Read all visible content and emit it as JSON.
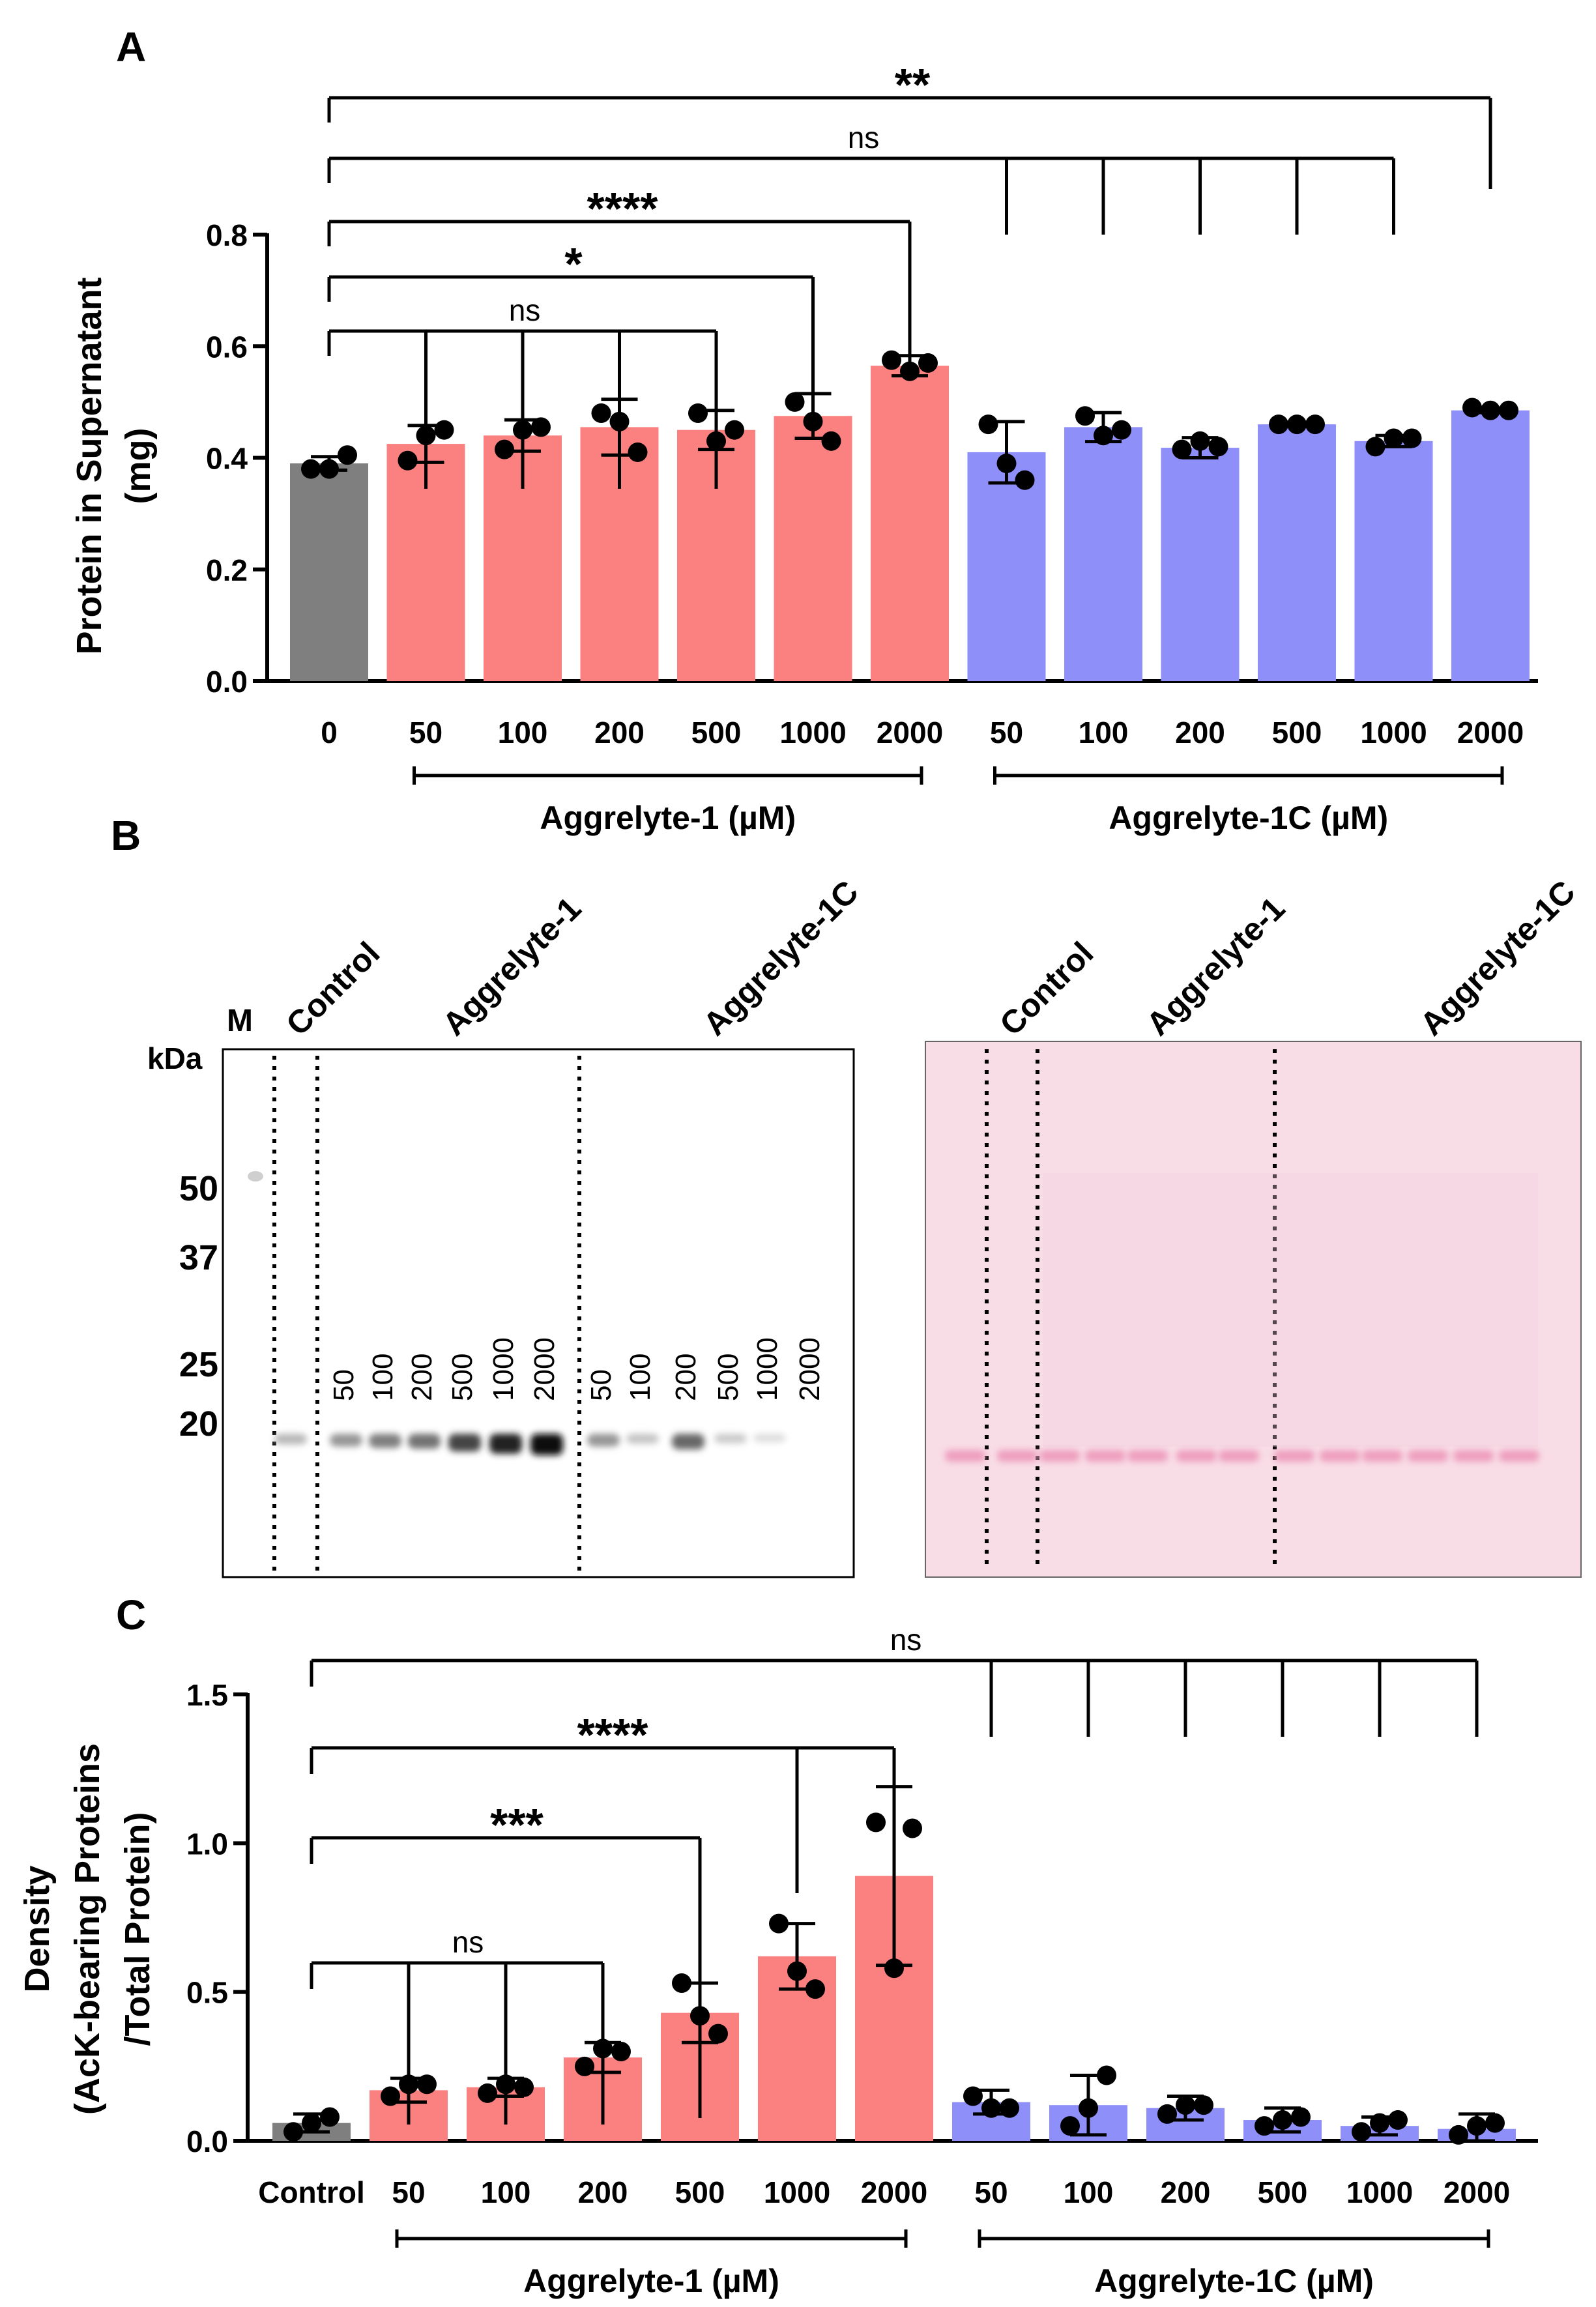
{
  "panels": {
    "a": "A",
    "b": "B",
    "c": "C"
  },
  "colors": {
    "control": "#7f7f7f",
    "aggrelyte1": "#fb8080",
    "aggrelyte1c": "#8f8ff9",
    "ink": "#000000",
    "ponceau_bg": "#f8dde6",
    "ponceau_band": "#ee9fbd"
  },
  "chart_data": [
    {
      "id": "A",
      "type": "bar",
      "title": "",
      "ylabel_line1": "Protein in Supernatant",
      "ylabel_line2": "(mg)",
      "xlabel": "",
      "ylim": [
        0,
        0.8
      ],
      "yticks": [
        "0.0",
        "0.2",
        "0.4",
        "0.6",
        "0.8"
      ],
      "categories": [
        "0",
        "50",
        "100",
        "200",
        "500",
        "1000",
        "2000",
        "50",
        "100",
        "200",
        "500",
        "1000",
        "2000"
      ],
      "groups": [
        "control",
        "aggrelyte1",
        "aggrelyte1",
        "aggrelyte1",
        "aggrelyte1",
        "aggrelyte1",
        "aggrelyte1",
        "aggrelyte1c",
        "aggrelyte1c",
        "aggrelyte1c",
        "aggrelyte1c",
        "aggrelyte1c",
        "aggrelyte1c"
      ],
      "values": [
        0.39,
        0.425,
        0.44,
        0.455,
        0.45,
        0.475,
        0.565,
        0.41,
        0.455,
        0.418,
        0.46,
        0.43,
        0.485
      ],
      "errors": [
        0.012,
        0.033,
        0.028,
        0.05,
        0.035,
        0.04,
        0.018,
        0.055,
        0.026,
        0.018,
        0.003,
        0.01,
        0.004
      ],
      "points": [
        [
          0.38,
          0.38,
          0.405
        ],
        [
          0.395,
          0.44,
          0.45
        ],
        [
          0.415,
          0.45,
          0.455
        ],
        [
          0.48,
          0.465,
          0.41
        ],
        [
          0.48,
          0.43,
          0.45
        ],
        [
          0.5,
          0.465,
          0.43
        ],
        [
          0.575,
          0.555,
          0.57
        ],
        [
          0.46,
          0.39,
          0.36
        ],
        [
          0.475,
          0.44,
          0.45
        ],
        [
          0.415,
          0.43,
          0.42
        ],
        [
          0.46,
          0.46,
          0.46
        ],
        [
          0.42,
          0.435,
          0.435
        ],
        [
          0.49,
          0.485,
          0.485
        ]
      ],
      "group_labels": [
        "Aggrelyte-1 (µM)",
        "Aggrelyte-1C (µM)"
      ],
      "significance": [
        {
          "label": "**",
          "from": 0,
          "to": [
            12
          ]
        },
        {
          "label": "ns",
          "from": 0,
          "to": [
            7,
            8,
            9,
            10,
            11
          ]
        },
        {
          "label": "****",
          "from": 0,
          "to": [
            6
          ]
        },
        {
          "label": "*",
          "from": 0,
          "to": [
            5
          ]
        },
        {
          "label": "ns",
          "from": 0,
          "to": [
            1,
            2,
            3,
            4
          ]
        }
      ]
    },
    {
      "id": "C",
      "type": "bar",
      "title": "",
      "ylabel_line1": "Density",
      "ylabel_line2": "(AcK-bearing Proteins",
      "ylabel_line3": "/Total Protein)",
      "xlabel": "",
      "ylim": [
        0,
        1.5
      ],
      "yticks": [
        "0.0",
        "0.5",
        "1.0",
        "1.5"
      ],
      "categories": [
        "Control",
        "50",
        "100",
        "200",
        "500",
        "1000",
        "2000",
        "50",
        "100",
        "200",
        "500",
        "1000",
        "2000"
      ],
      "groups": [
        "control",
        "aggrelyte1",
        "aggrelyte1",
        "aggrelyte1",
        "aggrelyte1",
        "aggrelyte1",
        "aggrelyte1",
        "aggrelyte1c",
        "aggrelyte1c",
        "aggrelyte1c",
        "aggrelyte1c",
        "aggrelyte1c",
        "aggrelyte1c"
      ],
      "values": [
        0.06,
        0.17,
        0.18,
        0.28,
        0.43,
        0.62,
        0.89,
        0.13,
        0.12,
        0.11,
        0.07,
        0.05,
        0.04
      ],
      "errors": [
        0.03,
        0.04,
        0.03,
        0.05,
        0.1,
        0.11,
        0.3,
        0.04,
        0.1,
        0.04,
        0.04,
        0.03,
        0.05
      ],
      "points": [
        [
          0.03,
          0.06,
          0.08
        ],
        [
          0.15,
          0.19,
          0.19
        ],
        [
          0.16,
          0.19,
          0.18
        ],
        [
          0.25,
          0.31,
          0.3
        ],
        [
          0.53,
          0.42,
          0.36
        ],
        [
          0.73,
          0.57,
          0.51
        ],
        [
          1.07,
          0.58,
          1.05
        ],
        [
          0.15,
          0.11,
          0.11
        ],
        [
          0.05,
          0.11,
          0.22
        ],
        [
          0.09,
          0.12,
          0.12
        ],
        [
          0.05,
          0.07,
          0.08
        ],
        [
          0.03,
          0.06,
          0.07
        ],
        [
          0.02,
          0.05,
          0.06
        ]
      ],
      "group_labels": [
        "Aggrelyte-1 (µM)",
        "Aggrelyte-1C (µM)"
      ],
      "significance": [
        {
          "label": "ns",
          "from": 0,
          "to": [
            7,
            8,
            9,
            10,
            11,
            12
          ]
        },
        {
          "label": "****",
          "from": 0,
          "to": [
            5,
            6
          ]
        },
        {
          "label": "***",
          "from": 0,
          "to": [
            4
          ]
        },
        {
          "label": "ns",
          "from": 0,
          "to": [
            1,
            2,
            3
          ]
        }
      ]
    }
  ],
  "blot": {
    "marker_label": "M",
    "kda_label": "kDa",
    "markers": [
      "50",
      "37",
      "25",
      "20"
    ],
    "lane_headers_left": [
      "Control",
      "Aggrelyte-1",
      "Aggrelyte-1C"
    ],
    "lane_headers_right": [
      "Control",
      "Aggrelyte-1",
      "Aggrelyte-1C"
    ],
    "lane_labels": [
      "50",
      "100",
      "200",
      "500",
      "1000",
      "2000",
      "50",
      "100",
      "200",
      "500",
      "1000",
      "2000"
    ],
    "band_intensity": [
      0.2,
      0.35,
      0.45,
      0.5,
      0.7,
      0.85,
      0.95,
      0.35,
      0.15,
      0.55,
      0.12,
      0.04,
      0.0
    ]
  }
}
